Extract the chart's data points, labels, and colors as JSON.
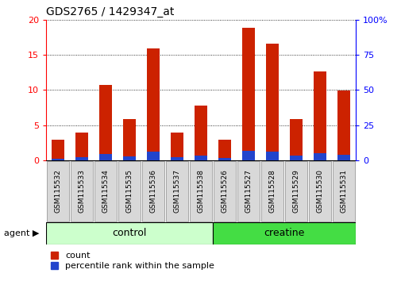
{
  "title": "GDS2765 / 1429347_at",
  "samples": [
    "GSM115532",
    "GSM115533",
    "GSM115534",
    "GSM115535",
    "GSM115536",
    "GSM115537",
    "GSM115538",
    "GSM115526",
    "GSM115527",
    "GSM115528",
    "GSM115529",
    "GSM115530",
    "GSM115531"
  ],
  "count_values": [
    2.9,
    3.9,
    10.7,
    5.9,
    15.9,
    3.9,
    7.8,
    2.9,
    18.8,
    16.6,
    5.9,
    12.6,
    9.9
  ],
  "percentile_values": [
    1.2,
    1.9,
    4.5,
    2.5,
    5.9,
    2.1,
    3.5,
    1.4,
    6.8,
    6.3,
    3.2,
    4.9,
    4.1
  ],
  "bar_color_red": "#cc2200",
  "bar_color_blue": "#2244cc",
  "ylim_left": [
    0,
    20
  ],
  "ylim_right": [
    0,
    100
  ],
  "yticks_left": [
    0,
    5,
    10,
    15,
    20
  ],
  "yticks_right": [
    0,
    25,
    50,
    75,
    100
  ],
  "groups": [
    {
      "label": "control",
      "start": 0,
      "end": 6,
      "color": "#ccffcc"
    },
    {
      "label": "creatine",
      "start": 7,
      "end": 12,
      "color": "#44dd44"
    }
  ],
  "legend_items": [
    "count",
    "percentile rank within the sample"
  ],
  "agent_label": "agent",
  "xlabels_bg": "#d8d8d8",
  "xlabels_border": "#999999",
  "bar_width": 0.55
}
